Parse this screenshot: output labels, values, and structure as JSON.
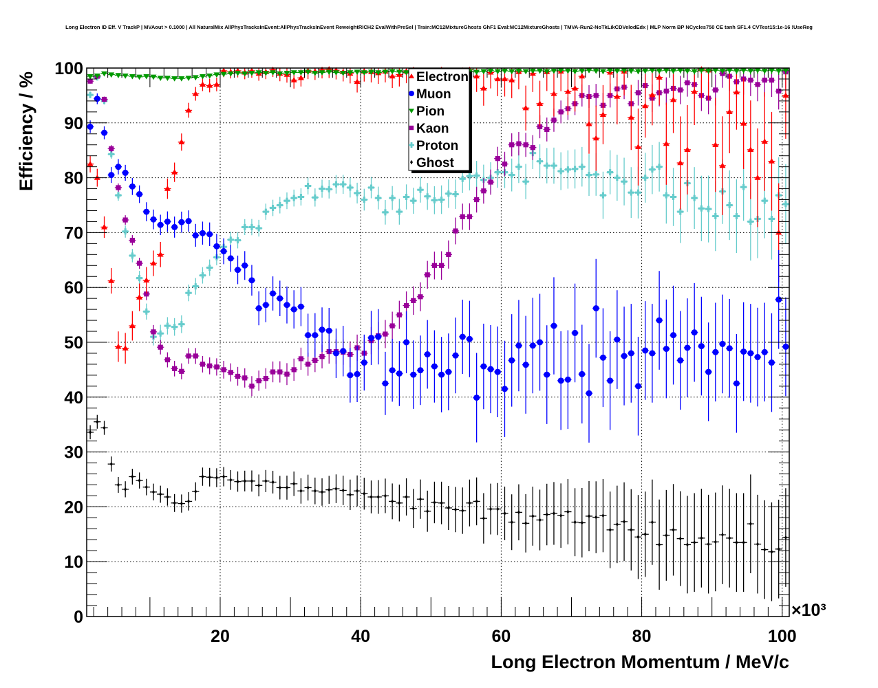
{
  "chart_data": {
    "type": "scatter",
    "title": "Long Electron ID Eff. V TrackP | MVAout > 0.1000 | All NaturalMix AllPhysTracksInEvent:AllPhysTracksInEvent ReweightRICH2 EvalWithPreSel | Train:MC12MixtureGhosts GhF1 Eval:MC12MixtureGhosts | TMVA-Run2-NoTkLikCDVelodEdx | MLP Norm BP NCycles750 CE tanh SF1.4 CVTest15:1e-16 !UseReg",
    "xlabel": "Long Electron Momentum / MeV/c",
    "ylabel": "Efficiency / %",
    "x_multiplier": "×10³",
    "xlim": [
      1,
      101
    ],
    "ylim": [
      0,
      100
    ],
    "x_start": 1.5,
    "x_step": 1,
    "x_ticks": [
      "20",
      "40",
      "60",
      "80",
      "100"
    ],
    "x_tick_values": [
      20,
      40,
      60,
      80,
      100
    ],
    "y_ticks": [
      "0",
      "10",
      "20",
      "30",
      "40",
      "50",
      "60",
      "70",
      "80",
      "90",
      "100"
    ],
    "y_tick_values": [
      0,
      10,
      20,
      30,
      40,
      50,
      60,
      70,
      80,
      90,
      100
    ],
    "grid": true,
    "legend_placement": "top-center",
    "series": [
      {
        "name": "Electron",
        "color": "#ff0000",
        "marker": "triangle-up",
        "err_base": 0.9,
        "values": [
          82.5,
          80.0,
          71.0,
          61.2,
          49.2,
          48.9,
          53.0,
          58.2,
          61.3,
          64.4,
          66.0,
          78.0,
          81.0,
          86.5,
          92.3,
          95.3,
          97.0,
          96.8,
          97.0,
          99.5,
          99.3,
          99.5,
          99.2,
          99.5,
          99.0,
          99.3,
          99.7,
          99.0,
          98.8,
          97.8,
          98.2,
          99.5,
          99.4,
          99.7,
          99.8,
          99.6,
          99.3,
          99.0,
          97.5,
          99.4,
          99.3,
          99.1,
          99.4,
          98.5,
          98.8,
          99.4,
          99.7,
          99.5,
          99.2,
          99.1,
          99.7,
          99.5,
          99.3,
          99.6,
          99.7,
          98.5,
          96.3,
          99.2,
          98.0,
          98.0,
          97.8,
          99.3,
          92.7,
          99.0,
          93.5,
          99.3,
          95.3,
          99.4,
          95.7,
          96.3,
          98.5,
          89.8,
          87.2,
          91.5,
          99.2,
          94.8,
          99.4,
          91.0,
          85.6,
          93.1,
          95.1,
          98.3,
          86.2,
          94.2,
          82.7,
          85.1,
          95.7,
          99.8,
          99.6,
          86.0,
          82.2,
          92.0,
          95.6,
          89.9,
          85.1,
          80.0,
          86.6,
          83.0,
          70.0,
          95.0
        ]
      },
      {
        "name": "Muon",
        "color": "#0000ff",
        "marker": "circle",
        "err_base": 0.8,
        "values": [
          89.3,
          94.4,
          88.2,
          80.5,
          82.0,
          80.9,
          78.4,
          77.0,
          73.8,
          72.4,
          71.4,
          72.0,
          71.0,
          71.9,
          72.1,
          69.5,
          69.9,
          69.7,
          67.5,
          66.6,
          65.3,
          63.2,
          64.0,
          61.3,
          56.2,
          56.8,
          58.9,
          58.0,
          56.8,
          56.0,
          56.5,
          51.3,
          51.3,
          52.3,
          52.1,
          48.0,
          48.4,
          44.0,
          44.2,
          46.3,
          50.8,
          51.0,
          42.5,
          44.9,
          44.3,
          50.0,
          44.1,
          44.9,
          47.8,
          45.6,
          44.1,
          44.6,
          47.6,
          51.0,
          50.6,
          39.9,
          45.6,
          45.1,
          44.6,
          41.5,
          46.7,
          49.4,
          45.9,
          49.4,
          50.0,
          44.1,
          53.0,
          43.0,
          43.2,
          51.7,
          44.2,
          40.7,
          56.2,
          47.2,
          43.0,
          50.5,
          47.5,
          48.0,
          42.0,
          48.5,
          48.0,
          54.0,
          48.8,
          51.3,
          46.7,
          49.0,
          51.8,
          49.3,
          44.6,
          48.2,
          49.7,
          48.9,
          42.5,
          48.3,
          48.0,
          47.3,
          48.2,
          46.3,
          57.8,
          49.2
        ]
      },
      {
        "name": "Pion",
        "color": "#009900",
        "marker": "triangle-down",
        "err_base": 0.1,
        "values": [
          98.5,
          98.6,
          99.0,
          98.8,
          98.7,
          98.6,
          98.5,
          98.4,
          98.5,
          98.4,
          98.2,
          98.2,
          98.1,
          98.1,
          98.2,
          98.3,
          98.5,
          98.6,
          98.8,
          98.9,
          99.0,
          99.1,
          99.0,
          99.1,
          99.2,
          99.1,
          99.2,
          99.0,
          99.1,
          99.2,
          99.2,
          99.3,
          99.1,
          99.2,
          99.3,
          99.2,
          99.1,
          99.2,
          99.3,
          99.2,
          99.3,
          99.2,
          99.3,
          99.4,
          99.3,
          99.2,
          99.3,
          99.4,
          99.3,
          99.4,
          99.4,
          99.3,
          99.4,
          99.5,
          99.4,
          99.3,
          99.4,
          99.5,
          99.4,
          99.5,
          99.4,
          99.5,
          99.4,
          99.5,
          99.5,
          99.4,
          99.5,
          99.6,
          99.5,
          99.4,
          99.5,
          99.6,
          99.5,
          99.4,
          99.6,
          99.5,
          99.6,
          99.5,
          99.4,
          99.5,
          99.6,
          99.5,
          99.6,
          99.5,
          99.6,
          99.5,
          99.4,
          99.6,
          99.5,
          99.6,
          99.5,
          99.6,
          99.5,
          99.6,
          99.5,
          99.6,
          99.5,
          99.6,
          99.5,
          99.6
        ]
      },
      {
        "name": "Kaon",
        "color": "#990099",
        "marker": "square",
        "err_base": 0.4,
        "values": [
          97.6,
          98.5,
          94.3,
          85.3,
          78.2,
          72.3,
          68.6,
          64.4,
          58.8,
          51.9,
          49.1,
          46.8,
          45.2,
          44.7,
          47.5,
          47.5,
          46.0,
          45.7,
          45.5,
          45.0,
          44.5,
          43.8,
          43.5,
          42.0,
          43.0,
          43.4,
          44.6,
          44.6,
          44.2,
          45.0,
          47.0,
          46.0,
          46.7,
          47.4,
          48.3,
          48.3,
          48.2,
          47.8,
          49.0,
          48.0,
          50.3,
          51.2,
          51.5,
          53.0,
          55.0,
          56.7,
          57.6,
          58.3,
          62.3,
          64.0,
          64.0,
          66.0,
          70.3,
          72.9,
          72.9,
          76.0,
          77.6,
          79.2,
          83.5,
          82.5,
          86.0,
          86.2,
          86.0,
          85.5,
          89.3,
          88.8,
          90.5,
          92.0,
          92.6,
          93.5,
          95.0,
          94.8,
          95.0,
          93.2,
          95.0,
          96.2,
          96.5,
          93.5,
          95.5,
          96.8,
          94.5,
          95.5,
          95.8,
          96.3,
          96.0,
          97.3,
          97.0,
          95.0,
          94.5,
          96.0,
          99.0,
          98.5,
          97.5,
          98.0,
          97.8,
          97.0,
          97.8,
          97.8,
          95.8,
          99.3
        ]
      },
      {
        "name": "Proton",
        "color": "#66cccc",
        "marker": "cross",
        "err_base": 0.5,
        "values": [
          95.1,
          98.3,
          94.0,
          84.3,
          76.8,
          70.2,
          65.8,
          61.7,
          55.6,
          51.0,
          51.6,
          53.0,
          52.8,
          53.3,
          59.0,
          60.2,
          62.2,
          63.6,
          65.5,
          67.4,
          68.7,
          68.6,
          71.0,
          71.0,
          70.8,
          73.8,
          74.5,
          75.0,
          75.8,
          76.3,
          76.5,
          78.5,
          76.4,
          78.0,
          77.9,
          78.8,
          78.8,
          78.2,
          77.2,
          76.0,
          78.2,
          76.3,
          73.7,
          76.3,
          73.8,
          76.5,
          75.8,
          77.8,
          76.6,
          75.9,
          76.0,
          77.1,
          77.0,
          79.8,
          80.3,
          80.4,
          79.6,
          80.0,
          81.0,
          81.0,
          80.5,
          82.0,
          79.3,
          84.5,
          83.0,
          82.2,
          82.2,
          81.2,
          81.5,
          81.6,
          82.0,
          80.5,
          80.6,
          76.8,
          81.0,
          80.0,
          79.3,
          77.3,
          77.3,
          80.0,
          81.5,
          82.0,
          76.8,
          76.5,
          73.8,
          79.0,
          76.3,
          74.4,
          74.3,
          73.0,
          77.5,
          75.0,
          73.0,
          78.3,
          72.0,
          72.5,
          75.8,
          72.5,
          76.8,
          75.2
        ]
      },
      {
        "name": "Ghost",
        "color": "#000000",
        "marker": "diamond",
        "err_base": 0.35,
        "values": [
          33.6,
          35.5,
          34.4,
          27.8,
          24.0,
          23.2,
          25.5,
          24.8,
          23.6,
          22.7,
          22.3,
          21.8,
          20.7,
          20.6,
          21.0,
          22.8,
          25.5,
          25.4,
          25.3,
          25.5,
          24.9,
          24.6,
          24.7,
          24.7,
          23.9,
          24.7,
          24.5,
          23.5,
          23.5,
          24.2,
          22.9,
          23.5,
          22.9,
          22.7,
          23.1,
          23.3,
          23.0,
          22.2,
          22.9,
          22.4,
          21.8,
          21.8,
          22.0,
          21.0,
          20.7,
          21.8,
          19.7,
          21.4,
          19.2,
          20.8,
          20.7,
          19.8,
          19.5,
          19.3,
          20.7,
          21.0,
          17.9,
          19.6,
          19.6,
          18.8,
          17.2,
          19.0,
          17.0,
          18.3,
          17.6,
          18.6,
          18.8,
          18.4,
          19.1,
          17.2,
          17.1,
          18.3,
          18.1,
          18.4,
          15.8,
          16.8,
          17.3,
          15.8,
          14.5,
          15.0,
          17.2,
          13.1,
          14.8,
          15.8,
          14.2,
          13.1,
          13.5,
          14.3,
          13.2,
          13.6,
          14.9,
          14.3,
          13.5,
          13.5,
          16.9,
          13.2,
          12.2,
          11.8,
          12.3,
          14.4
        ]
      }
    ]
  }
}
